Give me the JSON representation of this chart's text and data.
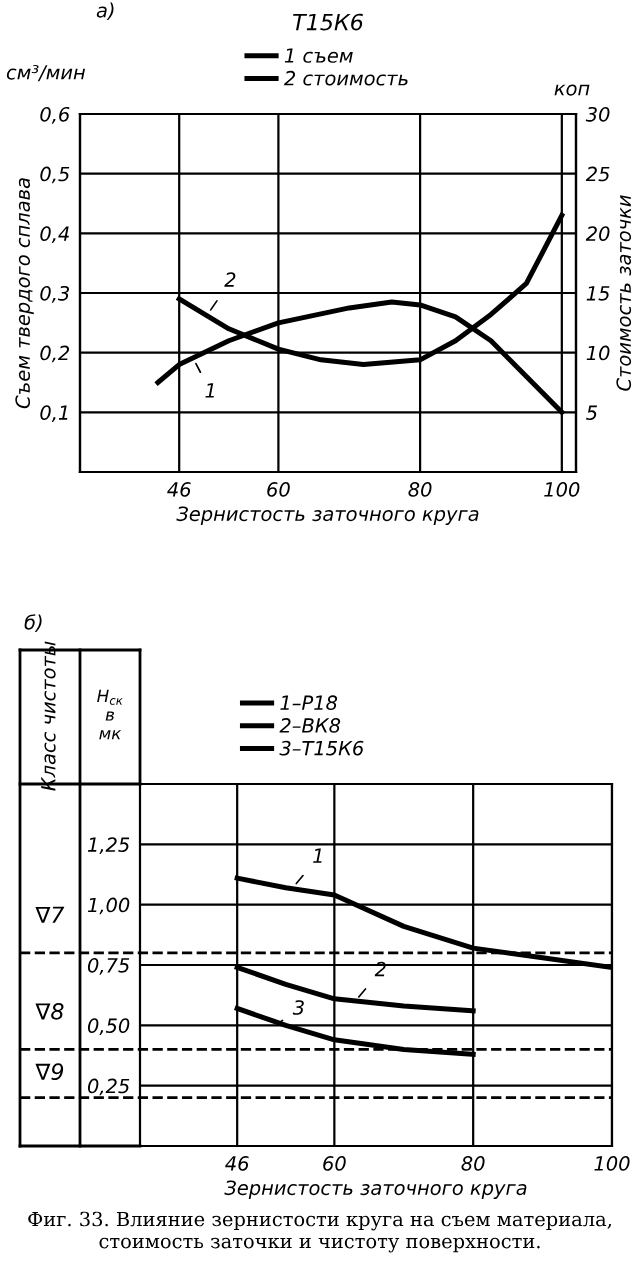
{
  "chart_data": [
    {
      "type": "line",
      "title": "Т15К6",
      "xlabel": "Зернистость заточного круга",
      "ylabel": "Съем твердого сплава",
      "y2label": "Стоимость заточки",
      "annotations": [
        "а)",
        "см³/мин",
        "коп",
        {
          "text": "1",
          "x": 48,
          "y": 0.19
        },
        {
          "text": "2",
          "x": 50,
          "y": 0.264
        }
      ],
      "series": [
        {
          "name": "1 съем",
          "color": "#000000",
          "x": [
            43,
            46,
            53,
            60,
            70,
            76,
            80,
            85,
            90,
            95,
            100
          ],
          "values": [
            0.15,
            0.18,
            0.22,
            0.25,
            0.275,
            0.285,
            0.28,
            0.26,
            0.22,
            0.16,
            0.1
          ]
        },
        {
          "name": "2 стоимость",
          "color": "#000000",
          "axis": "y2",
          "x": [
            46,
            53,
            60,
            66,
            72,
            80,
            85,
            90,
            95,
            100
          ],
          "values": [
            14.5,
            12,
            10.3,
            9.4,
            9,
            9.4,
            11,
            13.2,
            15.8,
            21.5
          ]
        }
      ],
      "xlim": [
        32,
        102
      ],
      "xticks": [
        46,
        60,
        80,
        100
      ],
      "ylim": [
        0,
        0.6
      ],
      "yticks": [
        {
          "value": 0.1,
          "label": "0,1"
        },
        {
          "value": 0.2,
          "label": "0,2"
        },
        {
          "value": 0.3,
          "label": "0,3"
        },
        {
          "value": 0.4,
          "label": "0,4"
        },
        {
          "value": 0.5,
          "label": "0,5"
        },
        {
          "value": 0.6,
          "label": "0,6"
        }
      ],
      "y2lim": [
        0,
        30
      ],
      "y2ticks": [
        5,
        10,
        15,
        20,
        25,
        30
      ],
      "grid": true,
      "legend": "top",
      "marker": "none",
      "line_style": "solid"
    },
    {
      "type": "line",
      "ylabel": "H$_{ск}$ в мк",
      "xlabel": "Зернистость заточного круга",
      "annotations": [
        "б)",
        "Класс чистоты",
        "Фиг. 33. Влияние зернистости круга на съем материала, стоимость заточки и чистоту поверхности.",
        {
          "text": "1",
          "x": 54,
          "y": 1.07
        },
        {
          "text": "2",
          "x": 63,
          "y": 0.6
        },
        {
          "text": "3",
          "x": 52,
          "y": 0.51
        }
      ],
      "series": [
        {
          "name": "1–Р18",
          "color": "#000000",
          "x": [
            46,
            53,
            60,
            70,
            80,
            90,
            100
          ],
          "values": [
            1.11,
            1.07,
            1.04,
            0.91,
            0.82,
            0.78,
            0.74
          ]
        },
        {
          "name": "2–ВК8",
          "color": "#000000",
          "x": [
            46,
            53,
            60,
            70,
            80
          ],
          "values": [
            0.74,
            0.67,
            0.61,
            0.58,
            0.56
          ]
        },
        {
          "name": "3–Т15К6",
          "color": "#000000",
          "x": [
            46,
            53,
            60,
            70,
            80
          ],
          "values": [
            0.57,
            0.5,
            0.44,
            0.4,
            0.38
          ]
        }
      ],
      "ref_lines": [
        {
          "axis": "y",
          "value": 0.8,
          "label": "∇7",
          "line_style": "dashed"
        },
        {
          "axis": "y",
          "value": 0.4,
          "label": "∇8",
          "line_style": "dashed"
        },
        {
          "axis": "y",
          "value": 0.2,
          "label": "∇9",
          "line_style": "dashed"
        }
      ],
      "xlim": [
        32,
        100
      ],
      "xticks": [
        46,
        60,
        80,
        100
      ],
      "ylim": [
        0,
        1.5
      ],
      "yticks": [
        {
          "value": 0.25,
          "label": "0,25"
        },
        {
          "value": 0.5,
          "label": "0,50"
        },
        {
          "value": 0.75,
          "label": "0,75"
        },
        {
          "value": 1.0,
          "label": "1,00"
        },
        {
          "value": 1.25,
          "label": "1,25"
        }
      ],
      "grid": true,
      "legend": "top left",
      "marker": "none",
      "line_style": "solid"
    }
  ]
}
